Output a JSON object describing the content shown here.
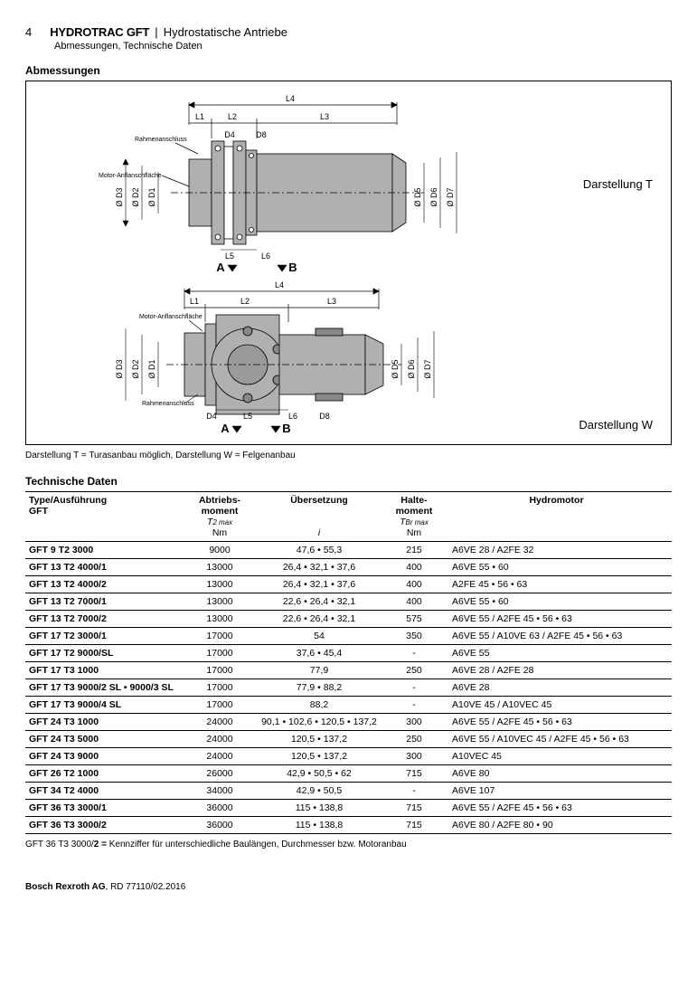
{
  "header": {
    "page_number": "4",
    "brand": "HYDROTRAC GFT",
    "pipe": "|",
    "subtitle": "Hydrostatische Antriebe",
    "subheading": "Abmessungen, Technische Daten"
  },
  "sections": {
    "dimensions_title": "Abmessungen",
    "techdata_title": "Technische Daten"
  },
  "diagram": {
    "label_T": "Darstellung T",
    "label_W": "Darstellung W",
    "caption": "Darstellung T = Turasanbau möglich, Darstellung W = Felgenanbau",
    "labels": {
      "L1": "L1",
      "L2": "L2",
      "L3": "L3",
      "L4": "L4",
      "L5": "L5",
      "L6": "L6",
      "D1": "Ø D1",
      "D2": "Ø D2",
      "D3": "Ø D3",
      "D4": "D4",
      "D5": "Ø D5",
      "D6": "Ø D6",
      "D7": "Ø D7",
      "D8": "D8",
      "A": "A",
      "B": "B",
      "rahmen": "Rahmenanschluss",
      "motor": "Motor-Anflanschfläche"
    },
    "colors": {
      "body_fill": "#b0b0b0",
      "body_stroke": "#000000",
      "dim_line": "#000000",
      "frame": "#000000"
    }
  },
  "table": {
    "headers": {
      "type1": "Type/Ausführung",
      "type2": "GFT",
      "abt1": "Abtriebs-",
      "abt2": "moment",
      "abt_sym": "T",
      "abt_sub": "2 max",
      "abt_unit": "Nm",
      "ub": "Übersetzung",
      "ub_sym": "i",
      "halte1": "Halte-",
      "halte2": "moment",
      "halte_sym": "T",
      "halte_sub": "Br max",
      "halte_unit": "Nm",
      "hyd": "Hydromotor"
    },
    "rows": [
      {
        "type": "GFT 9 T2 3000",
        "abt": "9000",
        "ub": "47,6 • 55,3",
        "halte": "215",
        "hyd": "A6VE 28 / A2FE 32"
      },
      {
        "type": "GFT 13 T2 4000/1",
        "abt": "13000",
        "ub": "26,4 • 32,1 • 37,6",
        "halte": "400",
        "hyd": "A6VE 55 • 60"
      },
      {
        "type": "GFT 13 T2 4000/2",
        "abt": "13000",
        "ub": "26,4 • 32,1 • 37,6",
        "halte": "400",
        "hyd": "A2FE 45 • 56 • 63"
      },
      {
        "type": "GFT 13 T2 7000/1",
        "abt": "13000",
        "ub": "22,6 • 26,4 • 32,1",
        "halte": "400",
        "hyd": "A6VE 55 • 60"
      },
      {
        "type": "GFT 13 T2 7000/2",
        "abt": "13000",
        "ub": "22,6 • 26,4 • 32,1",
        "halte": "575",
        "hyd": "A6VE 55 / A2FE 45 • 56 • 63"
      },
      {
        "type": "GFT 17 T2 3000/1",
        "abt": "17000",
        "ub": "54",
        "halte": "350",
        "hyd": "A6VE 55 / A10VE 63 / A2FE 45 • 56 • 63"
      },
      {
        "type": "GFT 17 T2 9000/SL",
        "abt": "17000",
        "ub": "37,6 • 45,4",
        "halte": "-",
        "hyd": "A6VE 55"
      },
      {
        "type": "GFT 17 T3 1000",
        "abt": "17000",
        "ub": "77,9",
        "halte": "250",
        "hyd": "A6VE 28 / A2FE 28"
      },
      {
        "type": "GFT 17 T3 9000/2 SL • 9000/3 SL",
        "abt": "17000",
        "ub": "77,9 • 88,2",
        "halte": "-",
        "hyd": "A6VE 28"
      },
      {
        "type": "GFT 17 T3 9000/4 SL",
        "abt": "17000",
        "ub": "88,2",
        "halte": "-",
        "hyd": "A10VE 45 / A10VEC 45"
      },
      {
        "type": "GFT 24 T3 1000",
        "abt": "24000",
        "ub": "90,1 • 102,6 • 120,5 • 137,2",
        "halte": "300",
        "hyd": "A6VE 55 / A2FE 45 • 56 • 63"
      },
      {
        "type": "GFT 24 T3 5000",
        "abt": "24000",
        "ub": "120,5 • 137,2",
        "halte": "250",
        "hyd": "A6VE 55 / A10VEC 45 / A2FE 45 • 56 • 63"
      },
      {
        "type": "GFT 24 T3 9000",
        "abt": "24000",
        "ub": "120,5 • 137,2",
        "halte": "300",
        "hyd": "A10VEC 45"
      },
      {
        "type": "GFT 26 T2 1000",
        "abt": "26000",
        "ub": "42,9 • 50,5 • 62",
        "halte": "715",
        "hyd": "A6VE 80"
      },
      {
        "type": "GFT 34 T2 4000",
        "abt": "34000",
        "ub": "42,9 • 50,5",
        "halte": "-",
        "hyd": "A6VE 107"
      },
      {
        "type": "GFT 36 T3 3000/1",
        "abt": "36000",
        "ub": "115 • 138,8",
        "halte": "715",
        "hyd": "A6VE 55 / A2FE 45 • 56 • 63"
      },
      {
        "type": "GFT 36 T3 3000/2",
        "abt": "36000",
        "ub": "115 • 138,8",
        "halte": "715",
        "hyd": "A6VE 80 / A2FE 80 • 90"
      }
    ],
    "footnote_prefix": "GFT 36 T3 3000/",
    "footnote_bold": "2 =",
    "footnote_rest": " Kennziffer für unterschiedliche Baulängen, Durchmesser bzw. Motoranbau"
  },
  "footer": {
    "company": "Bosch Rexroth AG",
    "doc": ", RD 77110/02.2016"
  }
}
